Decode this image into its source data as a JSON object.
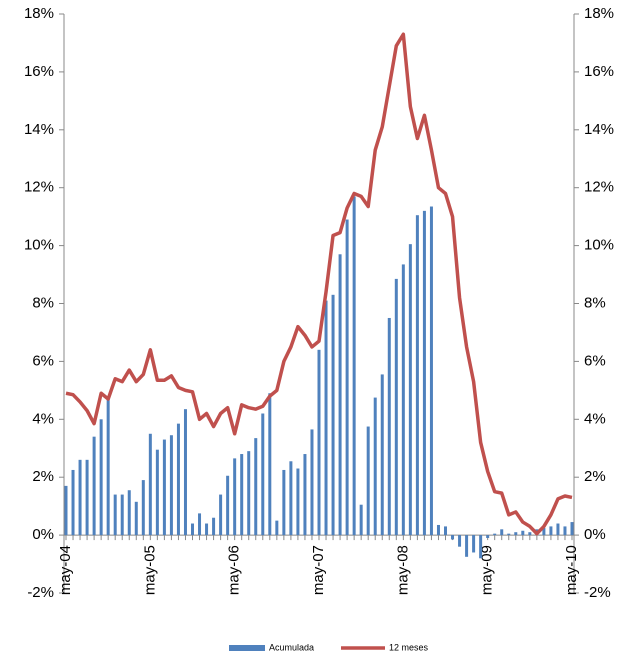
{
  "chart_data": {
    "type": "bar",
    "categories": [
      "may-04",
      null,
      null,
      null,
      null,
      null,
      null,
      null,
      null,
      null,
      null,
      null,
      "may-05",
      null,
      null,
      null,
      null,
      null,
      null,
      null,
      null,
      null,
      null,
      null,
      "may-06",
      null,
      null,
      null,
      null,
      null,
      null,
      null,
      null,
      null,
      null,
      null,
      "may-07",
      null,
      null,
      null,
      null,
      null,
      null,
      null,
      null,
      null,
      null,
      null,
      "may-08",
      null,
      null,
      null,
      null,
      null,
      null,
      null,
      null,
      null,
      null,
      null,
      "may-09",
      null,
      null,
      null,
      null,
      null,
      null,
      null,
      null,
      null,
      null,
      null,
      "may-10"
    ],
    "series": [
      {
        "name": "Acumulada",
        "color": "#4f81bd",
        "values": [
          1.7,
          2.25,
          2.6,
          2.6,
          3.4,
          4.0,
          4.8,
          1.4,
          1.4,
          1.55,
          1.15,
          1.9,
          3.5,
          2.95,
          3.3,
          3.45,
          3.85,
          4.35,
          0.4,
          0.75,
          0.4,
          0.6,
          1.4,
          2.05,
          2.65,
          2.8,
          2.9,
          3.35,
          4.2,
          4.9,
          0.5,
          2.25,
          2.55,
          2.3,
          2.8,
          3.65,
          6.4,
          8.1,
          8.3,
          9.7,
          10.9,
          11.7,
          1.05,
          3.75,
          4.75,
          5.55,
          7.5,
          8.85,
          9.35,
          10.05,
          11.05,
          11.2,
          11.35,
          0.35,
          0.3,
          -0.15,
          -0.4,
          -0.75,
          -0.6,
          -0.8,
          -0.1,
          0.05,
          0.2,
          0.05,
          0.1,
          0.15,
          0.1,
          0.2,
          0.25,
          0.3,
          0.4,
          0.3,
          0.45
        ]
      },
      {
        "name": "12 meses",
        "color": "#c0504d",
        "type": "line",
        "axis": "y2",
        "values": [
          4.9,
          4.85,
          4.6,
          4.3,
          3.85,
          4.9,
          4.7,
          5.4,
          5.3,
          5.7,
          5.3,
          5.55,
          6.4,
          5.35,
          5.35,
          5.5,
          5.1,
          5.0,
          4.95,
          4.0,
          4.2,
          3.75,
          4.2,
          4.4,
          3.5,
          4.5,
          4.4,
          4.35,
          4.45,
          4.8,
          5.0,
          6.0,
          6.5,
          7.2,
          6.9,
          6.5,
          6.7,
          8.4,
          10.35,
          10.45,
          11.3,
          11.8,
          11.7,
          11.35,
          13.3,
          14.1,
          15.5,
          16.9,
          17.3,
          14.8,
          13.7,
          14.5,
          13.3,
          12.0,
          11.8,
          11.0,
          8.2,
          6.5,
          5.3,
          3.2,
          2.2,
          1.5,
          1.45,
          0.7,
          0.8,
          0.45,
          0.3,
          0.05,
          0.3,
          0.7,
          1.25,
          1.35,
          1.3
        ]
      }
    ],
    "ylim": [
      -2,
      18
    ],
    "yticks": [
      {
        "value": -2,
        "label": "-2%"
      },
      {
        "value": 0,
        "label": "0%"
      },
      {
        "value": 2,
        "label": "2%"
      },
      {
        "value": 4,
        "label": "4%"
      },
      {
        "value": 6,
        "label": "6%"
      },
      {
        "value": 8,
        "label": "8%"
      },
      {
        "value": 10,
        "label": "10%"
      },
      {
        "value": 12,
        "label": "12%"
      },
      {
        "value": 14,
        "label": "14%"
      },
      {
        "value": 16,
        "label": "16%"
      },
      {
        "value": 18,
        "label": "18%"
      }
    ],
    "y2lim": [
      -2,
      18
    ],
    "y2ticks": [
      {
        "value": -2,
        "label": "-2%"
      },
      {
        "value": 0,
        "label": "0%"
      },
      {
        "value": 2,
        "label": "2%"
      },
      {
        "value": 4,
        "label": "4%"
      },
      {
        "value": 6,
        "label": "6%"
      },
      {
        "value": 8,
        "label": "8%"
      },
      {
        "value": 10,
        "label": "10%"
      },
      {
        "value": 12,
        "label": "12%"
      },
      {
        "value": 14,
        "label": "14%"
      },
      {
        "value": 16,
        "label": "16%"
      },
      {
        "value": 18,
        "label": "18%"
      }
    ],
    "legend": "bottom",
    "grid": false
  }
}
